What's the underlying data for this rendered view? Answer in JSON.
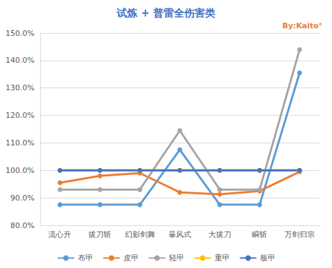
{
  "chart_data": {
    "type": "line",
    "title": "试炼 + 普雷全伤害类",
    "annotation": "By:Kaito°",
    "categories": [
      "流心升",
      "拔刀斩",
      "幻影剑舞",
      "暴风式",
      "大拔刀",
      "瞬斩",
      "万剑归宗"
    ],
    "series": [
      {
        "name": "布甲",
        "color": "#5b9bd5",
        "values": [
          87.5,
          87.5,
          87.5,
          107.5,
          87.5,
          87.5,
          135.5
        ]
      },
      {
        "name": "皮甲",
        "color": "#ed7d31",
        "values": [
          95.5,
          98,
          99,
          92,
          91.3,
          92.5,
          99.5
        ]
      },
      {
        "name": "轻甲",
        "color": "#a5a5a5",
        "values": [
          93,
          93,
          93,
          114.5,
          93,
          93,
          144
        ]
      },
      {
        "name": "重甲",
        "color": "#ffc000",
        "values": [
          100,
          100,
          100,
          100,
          100,
          100,
          100
        ]
      },
      {
        "name": "板甲",
        "color": "#4472c4",
        "values": [
          100,
          100,
          100,
          100,
          100,
          100,
          100
        ]
      }
    ],
    "ylim": [
      80,
      150
    ],
    "yticks": [
      {
        "value": 80,
        "label": "80.0%"
      },
      {
        "value": 90,
        "label": "90.0%"
      },
      {
        "value": 100,
        "label": "100.0%"
      },
      {
        "value": 110,
        "label": "110.0%"
      },
      {
        "value": 120,
        "label": "120.0%"
      },
      {
        "value": 130,
        "label": "130.0%"
      },
      {
        "value": 140,
        "label": "140.0%"
      },
      {
        "value": 150,
        "label": "150.0%"
      }
    ],
    "grid": true,
    "legend": "bottom",
    "marker": "circle",
    "line_style": "solid"
  }
}
